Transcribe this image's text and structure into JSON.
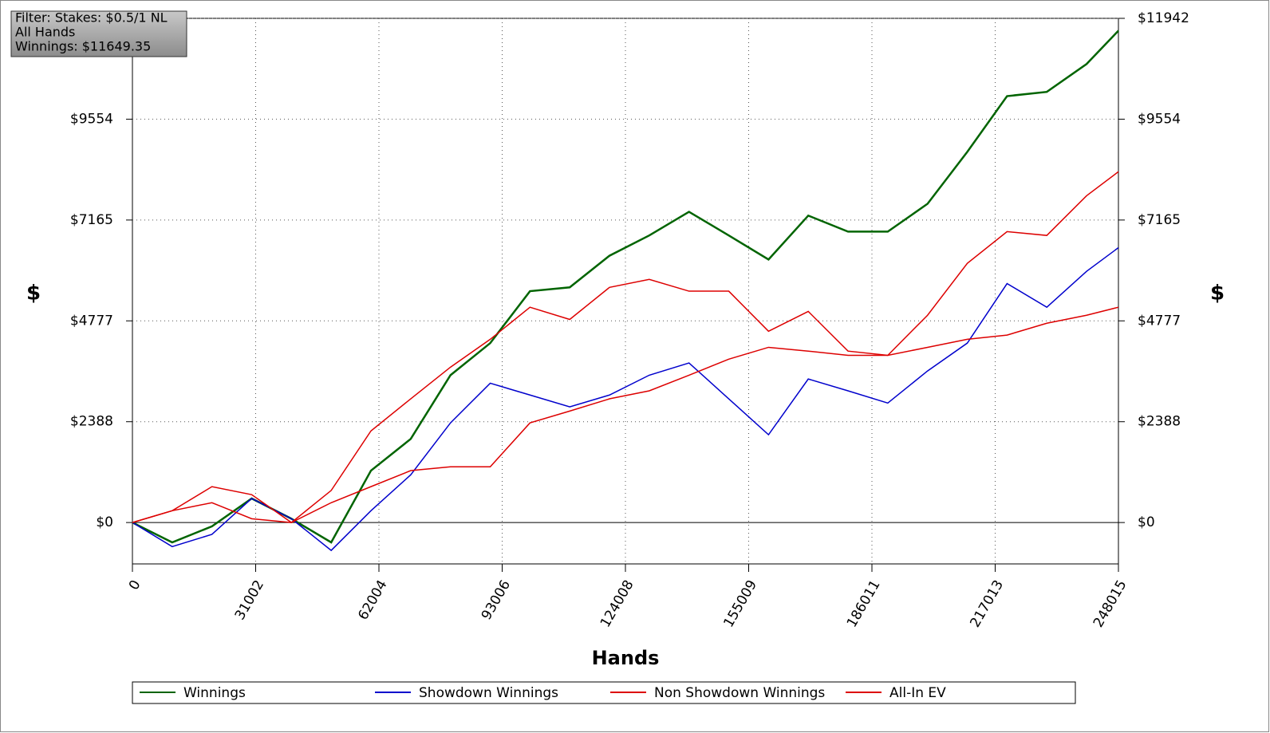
{
  "chart_data": {
    "type": "line",
    "info_box": [
      "Filter: Stakes: $0.5/1 NL",
      "All Hands",
      "Winnings: $11649.35"
    ],
    "xlabel": "Hands",
    "ylabel": "$",
    "x": [
      0,
      10000,
      20000,
      30000,
      40000,
      50000,
      60000,
      70000,
      80000,
      90000,
      100000,
      110000,
      120000,
      130000,
      140000,
      150000,
      160000,
      170000,
      180000,
      190000,
      200000,
      210000,
      220000,
      230000,
      240000,
      248015
    ],
    "series": [
      {
        "name": "Winnings",
        "color": "#006400",
        "values": [
          0,
          -470,
          -90,
          570,
          90,
          -470,
          1230,
          1980,
          3490,
          4250,
          5480,
          5570,
          6320,
          6800,
          7360,
          6800,
          6230,
          7270,
          6890,
          6890,
          7550,
          8780,
          10100,
          10200,
          10860,
          11649
        ]
      },
      {
        "name": "Showdown Winnings",
        "color": "#0000cc",
        "values": [
          0,
          -570,
          -280,
          570,
          90,
          -660,
          280,
          1130,
          2360,
          3300,
          3020,
          2740,
          3020,
          3490,
          3780,
          2930,
          2080,
          3400,
          3120,
          2830,
          3590,
          4250,
          5660,
          5100,
          5950,
          6510
        ]
      },
      {
        "name": "Non Showdown Winnings",
        "color": "#dd0000",
        "values": [
          0,
          280,
          850,
          660,
          0,
          760,
          2170,
          2930,
          3680,
          4340,
          5100,
          4810,
          5570,
          5760,
          5480,
          5480,
          4530,
          5000,
          4060,
          3960,
          4910,
          6140,
          6890,
          6800,
          7740,
          8310
        ]
      },
      {
        "name": "All-In EV",
        "color": "#dd0000",
        "values": [
          0,
          280,
          470,
          90,
          0,
          470,
          850,
          1230,
          1320,
          1320,
          2360,
          2640,
          2930,
          3120,
          3490,
          3870,
          4150,
          4060,
          3960,
          3960,
          4150,
          4340,
          4440,
          4720,
          4910,
          5100
        ]
      }
    ],
    "xlim": [
      0,
      248015
    ],
    "xticks": [
      0,
      31002,
      62004,
      93006,
      124008,
      155009,
      186011,
      217013,
      248015
    ],
    "ylim": [
      -980,
      11942
    ],
    "yticks": [
      {
        "value": 0,
        "label": "$0"
      },
      {
        "value": 2388,
        "label": "$2388"
      },
      {
        "value": 4777,
        "label": "$4777"
      },
      {
        "value": 7165,
        "label": "$7165"
      },
      {
        "value": 9554,
        "label": "$9554"
      },
      {
        "value": 11942,
        "label": "$11942"
      }
    ],
    "grid": true
  }
}
